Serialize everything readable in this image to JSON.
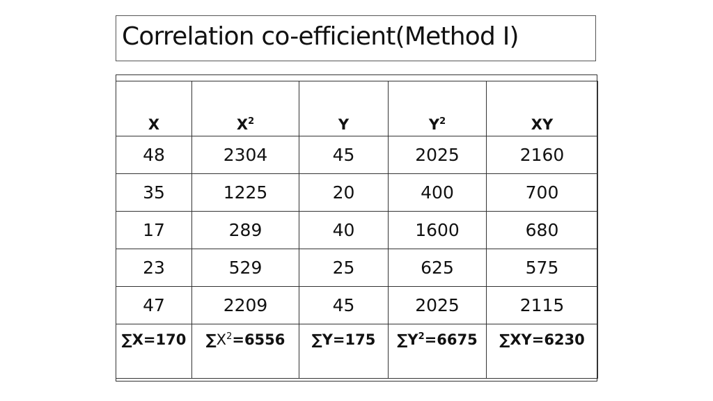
{
  "slide": {
    "title": "Correlation co-efficient(Method I)"
  },
  "table": {
    "headers": [
      {
        "base": "X",
        "sup": ""
      },
      {
        "base": "X",
        "sup": "2"
      },
      {
        "base": "Y",
        "sup": ""
      },
      {
        "base": "Y",
        "sup": "2"
      },
      {
        "base": "XY",
        "sup": ""
      }
    ],
    "rows": [
      [
        "48",
        "2304",
        "45",
        "2025",
        "2160"
      ],
      [
        "35",
        "1225",
        "20",
        "400",
        "700"
      ],
      [
        "17",
        "289",
        "40",
        "1600",
        "680"
      ],
      [
        "23",
        "529",
        "25",
        "625",
        "575"
      ],
      [
        "47",
        "2209",
        "45",
        "2025",
        "2115"
      ]
    ],
    "sums": [
      {
        "sigma": "∑",
        "var": "X",
        "sup": "",
        "value": "=170"
      },
      {
        "sigma": "∑",
        "var": "X",
        "sup": "2",
        "value": "=6556"
      },
      {
        "sigma": "∑",
        "var": "Y",
        "sup": "",
        "value": "=175"
      },
      {
        "sigma": "∑",
        "var": "Y",
        "sup": "2",
        "value": "=6675"
      },
      {
        "sigma": "∑",
        "var": "XY",
        "sup": "",
        "value": "=6230"
      }
    ]
  }
}
